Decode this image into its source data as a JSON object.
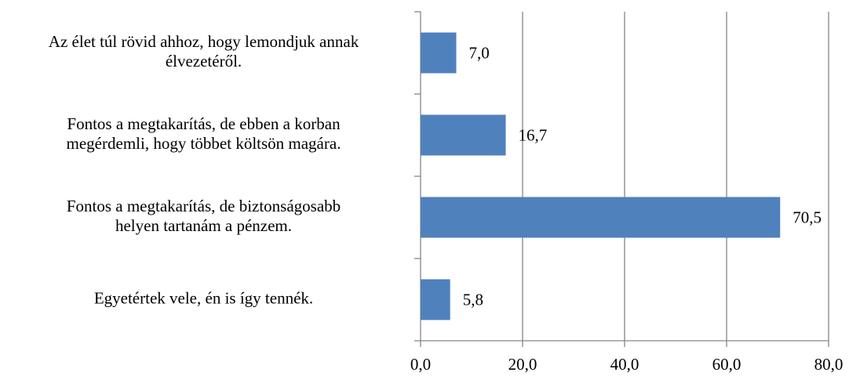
{
  "chart_data": {
    "type": "bar",
    "orientation": "horizontal",
    "categories": [
      "Az élet túl rövid ahhoz, hogy lemondjuk annak\nélvezetéről.",
      "Fontos a megtakarítás, de ebben a korban\nmegérdemli, hogy többet költsön magára.",
      "Fontos a megtakarítás, de biztonságosabb\nhelyen tartanám a pénzem.",
      "Egyetértek vele, én is így tennék."
    ],
    "values": [
      7.0,
      16.7,
      70.5,
      5.8
    ],
    "value_labels": [
      "7,0",
      "16,7",
      "70,5",
      "5,8"
    ],
    "color": "#4f81bd",
    "xlim": [
      0,
      80
    ],
    "xticks": [
      {
        "value": 0,
        "label": "0,0"
      },
      {
        "value": 20,
        "label": "20,0"
      },
      {
        "value": 40,
        "label": "40,0"
      },
      {
        "value": 60,
        "label": "60,0"
      },
      {
        "value": 80,
        "label": "80,0"
      }
    ],
    "grid": true
  }
}
